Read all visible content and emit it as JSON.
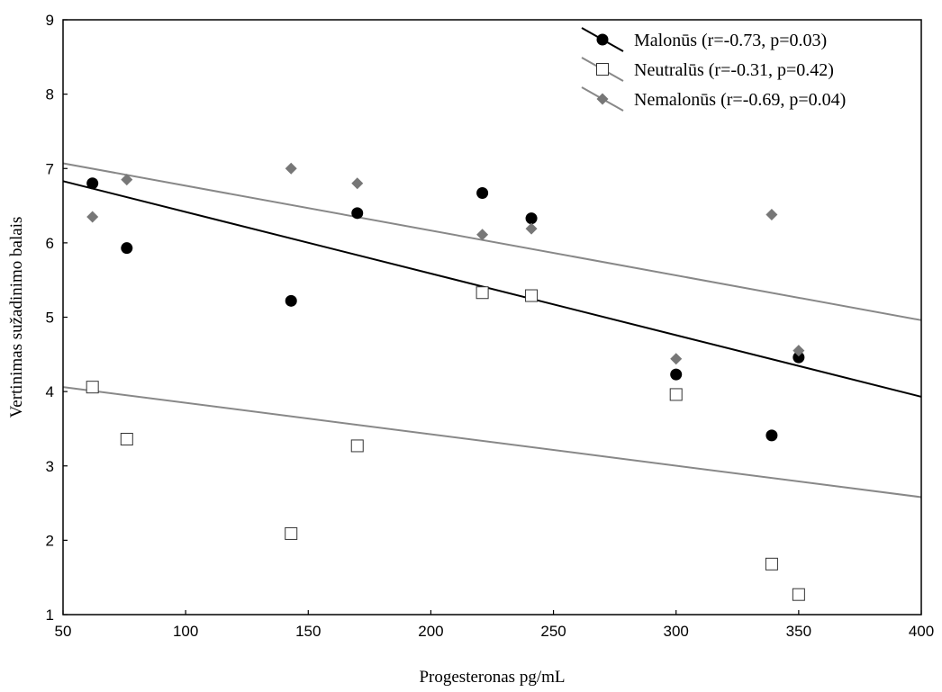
{
  "chart_data": {
    "type": "scatter",
    "title": "",
    "xlabel": "Progesteronas pg/mL",
    "ylabel": "Vertinimas sužadinimo balais",
    "xlim": [
      50,
      400
    ],
    "ylim": [
      1,
      9
    ],
    "xticks": [
      "50",
      "100",
      "150",
      "200",
      "250",
      "300",
      "350",
      "400"
    ],
    "yticks": [
      "1",
      "2",
      "3",
      "4",
      "5",
      "6",
      "7",
      "8",
      "9"
    ],
    "grid": false,
    "legend_position": "top-right",
    "series": [
      {
        "name": "Malonūs (r=-0.73, p=0.03)",
        "marker": "filled-circle",
        "color": "#000000",
        "line_color": "#000000",
        "points": [
          [
            62,
            6.8
          ],
          [
            76,
            5.93
          ],
          [
            143,
            5.22
          ],
          [
            170,
            6.4
          ],
          [
            221,
            6.67
          ],
          [
            241,
            6.33
          ],
          [
            300,
            4.23
          ],
          [
            339,
            3.41
          ],
          [
            350,
            4.46
          ]
        ],
        "trend": [
          [
            50,
            6.83
          ],
          [
            400,
            3.93
          ]
        ]
      },
      {
        "name": "Neutralūs (r=-0.31, p=0.42)",
        "marker": "open-square",
        "color": "#ffffff",
        "line_color": "#888888",
        "points": [
          [
            62,
            4.06
          ],
          [
            76,
            3.36
          ],
          [
            143,
            2.09
          ],
          [
            170,
            3.27
          ],
          [
            221,
            5.33
          ],
          [
            241,
            5.29
          ],
          [
            300,
            3.96
          ],
          [
            339,
            1.68
          ],
          [
            350,
            1.27
          ]
        ],
        "trend": [
          [
            50,
            4.06
          ],
          [
            400,
            2.58
          ]
        ]
      },
      {
        "name": "Nemalonūs (r=-0.69, p=0.04)",
        "marker": "diamond",
        "color": "#777777",
        "line_color": "#888888",
        "points": [
          [
            62,
            6.35
          ],
          [
            76,
            6.85
          ],
          [
            143,
            7.0
          ],
          [
            170,
            6.8
          ],
          [
            221,
            6.11
          ],
          [
            241,
            6.19
          ],
          [
            300,
            4.44
          ],
          [
            339,
            6.38
          ],
          [
            350,
            4.55
          ]
        ],
        "trend": [
          [
            50,
            7.07
          ],
          [
            400,
            4.96
          ]
        ]
      }
    ]
  }
}
